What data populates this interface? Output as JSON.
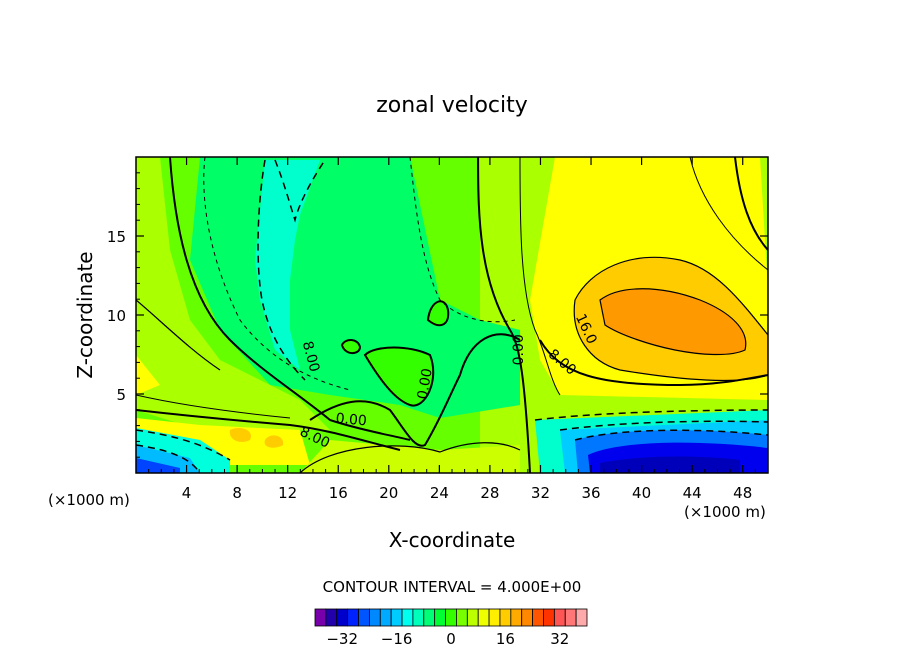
{
  "chart_data": {
    "type": "contour",
    "title": "zonal velocity",
    "xlabel": "X-coordinate",
    "ylabel": "Z-coordinate",
    "x_unit_note_left": "(×1000 m)",
    "x_unit_note_right": "(×1000 m)",
    "xlim": [
      0,
      50
    ],
    "ylim": [
      0,
      20
    ],
    "x_ticks": [
      4,
      8,
      12,
      16,
      20,
      24,
      28,
      32,
      36,
      40,
      44,
      48
    ],
    "y_ticks": [
      5,
      10,
      15
    ],
    "contour_interval_text": "CONTOUR INTERVAL = 4.000E+00",
    "contour_labels": [
      {
        "text": "0.00",
        "x": 17.0,
        "y": 3.1,
        "angle": 5
      },
      {
        "text": "8.00",
        "x": 14.0,
        "y": 2.0,
        "angle": 25
      },
      {
        "text": "8.00",
        "x": 13.5,
        "y": 7.3,
        "angle": 75
      },
      {
        "text": "0.00",
        "x": 23.2,
        "y": 5.6,
        "angle": -80
      },
      {
        "text": "0.00",
        "x": 30.6,
        "y": 7.8,
        "angle": -90
      },
      {
        "text": "8.00",
        "x": 33.5,
        "y": 6.8,
        "angle": 40
      },
      {
        "text": "16.0",
        "x": 35.3,
        "y": 9.0,
        "angle": 65
      }
    ],
    "colorbar": {
      "tick_labels": [
        "-32",
        "-16",
        "0",
        "16",
        "32"
      ],
      "tick_values": [
        -32,
        -16,
        0,
        16,
        32
      ],
      "min": -40,
      "max": 40,
      "step": 4
    },
    "grid": false
  }
}
